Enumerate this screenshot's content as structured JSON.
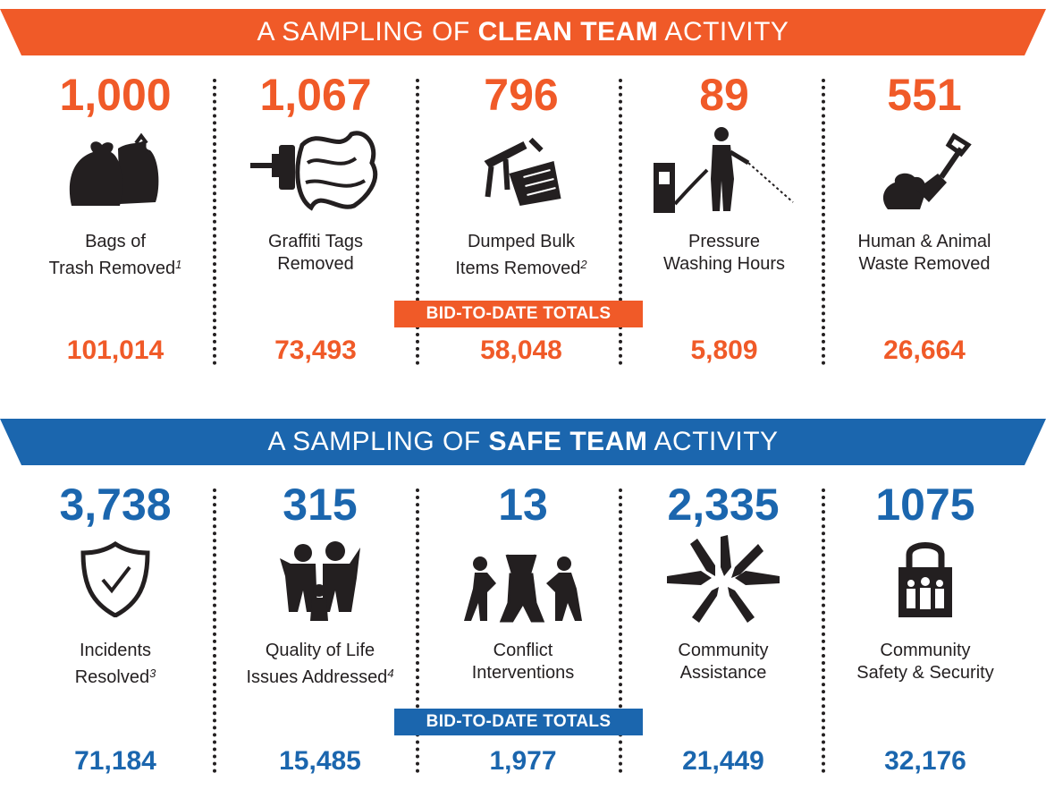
{
  "colors": {
    "clean": "#f05a28",
    "safe": "#1b66ae",
    "text": "#231f20"
  },
  "clean": {
    "banner": {
      "prefix": "A SAMPLING OF ",
      "emphasis": "CLEAN TEAM",
      "suffix": " ACTIVITY"
    },
    "bid_label": "BID-TO-DATE TOTALS",
    "items": [
      {
        "value": "1,000",
        "line1": "Bags of",
        "line2": "Trash Removed",
        "note": "1",
        "total": "101,014",
        "icon": "trash-bags-icon"
      },
      {
        "value": "1,067",
        "line1": "Graffiti Tags",
        "line2": "Removed",
        "note": "",
        "total": "73,493",
        "icon": "paint-roller-graffiti-icon"
      },
      {
        "value": "796",
        "line1": "Dumped Bulk",
        "line2": "Items Removed",
        "note": "2",
        "total": "58,048",
        "icon": "broken-chair-icon"
      },
      {
        "value": "89",
        "line1": "Pressure",
        "line2": "Washing Hours",
        "note": "",
        "total": "5,809",
        "icon": "pressure-washer-icon"
      },
      {
        "value": "551",
        "line1": "Human & Animal",
        "line2": "Waste Removed",
        "note": "",
        "total": "26,664",
        "icon": "shovel-waste-icon"
      }
    ]
  },
  "safe": {
    "banner": {
      "prefix": "A SAMPLING OF ",
      "emphasis": "SAFE TEAM",
      "suffix": " ACTIVITY"
    },
    "bid_label": "BID-TO-DATE TOTALS",
    "items": [
      {
        "value": "3,738",
        "line1": "Incidents",
        "line2": "Resolved",
        "note": "3",
        "total": "71,184",
        "icon": "shield-check-icon"
      },
      {
        "value": "315",
        "line1": "Quality of Life",
        "line2": "Issues Addressed",
        "note": "4",
        "total": "15,485",
        "icon": "family-hug-icon"
      },
      {
        "value": "13",
        "line1": "Conflict",
        "line2": "Interventions",
        "note": "",
        "total": "1,977",
        "icon": "conflict-people-icon"
      },
      {
        "value": "2,335",
        "line1": "Community",
        "line2": "Assistance",
        "note": "",
        "total": "21,449",
        "icon": "hands-circle-icon"
      },
      {
        "value": "1075",
        "line1": "Community",
        "line2": "Safety & Security",
        "note": "",
        "total": "32,176",
        "icon": "padlock-people-icon"
      }
    ]
  }
}
